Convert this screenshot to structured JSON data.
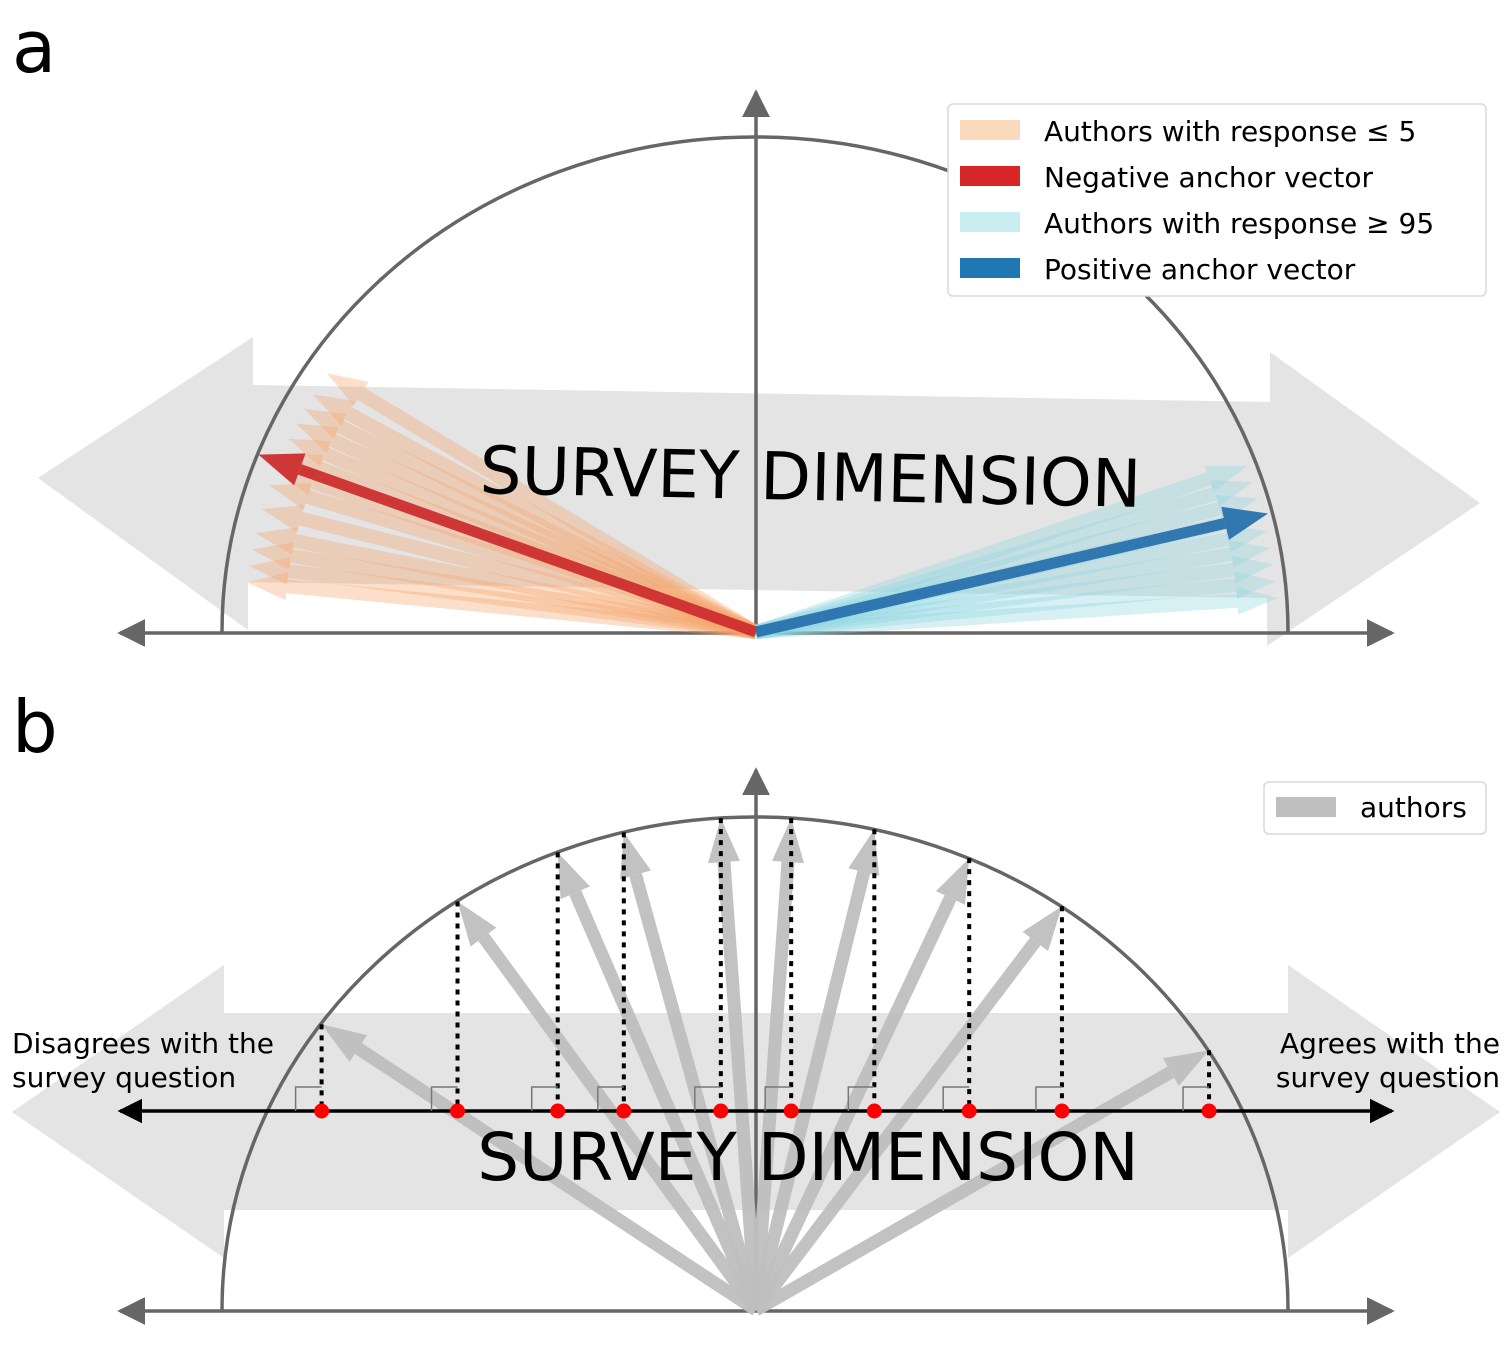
{
  "panel_a": {
    "label": "a",
    "dimension_label": "SURVEY DIMENSION",
    "legend": [
      {
        "label": "Authors with response ≤ 5",
        "color": "#fbd9bd"
      },
      {
        "label": "Negative anchor vector",
        "color": "#d62728"
      },
      {
        "label": "Authors with response ≥ 95",
        "color": "#c8eef2"
      },
      {
        "label": "Positive anchor vector",
        "color": "#1f77b4"
      }
    ],
    "negative_author_angles_deg": [
      147,
      150,
      152,
      154,
      156,
      158,
      160,
      162,
      165,
      168,
      170,
      172,
      174
    ],
    "negative_anchor_angle_deg": 159,
    "positive_author_angles_deg": [
      4,
      6,
      8,
      10,
      12,
      14,
      16,
      18,
      20
    ],
    "positive_anchor_angle_deg": 14
  },
  "panel_b": {
    "label": "b",
    "dimension_label": "SURVEY DIMENSION",
    "legend": [
      {
        "label": "authors",
        "color": "#bfbfbf"
      }
    ],
    "left_label_line1": "Disagrees with the",
    "left_label_line2": "survey question",
    "right_label_line1": "Agrees with the",
    "right_label_line2": "survey question",
    "author_projections": [
      -0.815,
      -0.56,
      -0.372,
      -0.248,
      -0.066,
      0.066,
      0.222,
      0.4,
      0.574,
      0.85
    ]
  },
  "colors": {
    "axis": "#666666",
    "band": "#e4e4e4",
    "author_gray": "#bfbfbf",
    "projection_point": "#ff0000",
    "negative_author": "#f6a46a",
    "positive_author": "#8fd6e2",
    "negative_anchor": "#cd2f2f",
    "positive_anchor": "#2a72ae"
  }
}
